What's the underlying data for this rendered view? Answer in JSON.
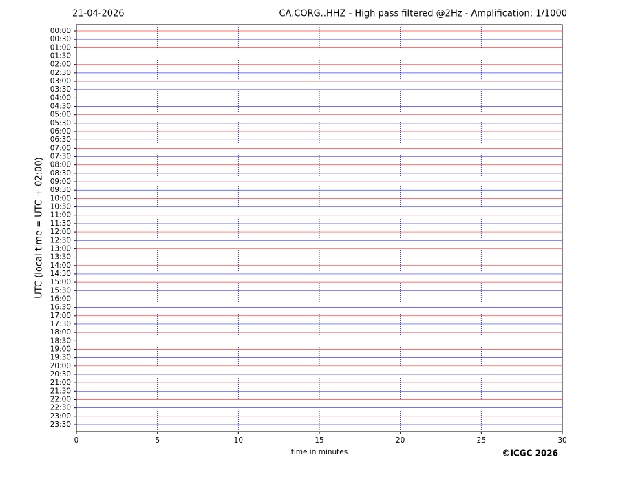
{
  "chart_data": {
    "type": "helicorder",
    "title": "21-04-2026",
    "subtitle": "CA.CORG..HHZ - High pass filtered @2Hz - Amplification: 1/1000",
    "ylabel": "UTC (local time = UTC + 02:00)",
    "xlabel": "time in minutes",
    "credit": "©ICGC 2026",
    "categories": [
      "00:00",
      "00:30",
      "01:00",
      "01:30",
      "02:00",
      "02:30",
      "03:00",
      "03:30",
      "04:00",
      "04:30",
      "05:00",
      "05:30",
      "06:00",
      "06:30",
      "07:00",
      "07:30",
      "08:00",
      "08:30",
      "09:00",
      "09:30",
      "10:00",
      "10:30",
      "11:00",
      "11:30",
      "12:00",
      "12:30",
      "13:00",
      "13:30",
      "14:00",
      "14:30",
      "15:00",
      "15:30",
      "16:00",
      "16:30",
      "17:00",
      "17:30",
      "18:00",
      "18:30",
      "19:00",
      "19:30",
      "20:00",
      "20:30",
      "21:00",
      "21:30",
      "22:00",
      "22:30",
      "23:00",
      "23:30"
    ],
    "trace_colors": [
      "#ff0000",
      "#0000ff"
    ],
    "xlim": [
      0,
      30
    ],
    "xticks": [
      0,
      5,
      10,
      15,
      20,
      25,
      30
    ],
    "grid": true
  }
}
